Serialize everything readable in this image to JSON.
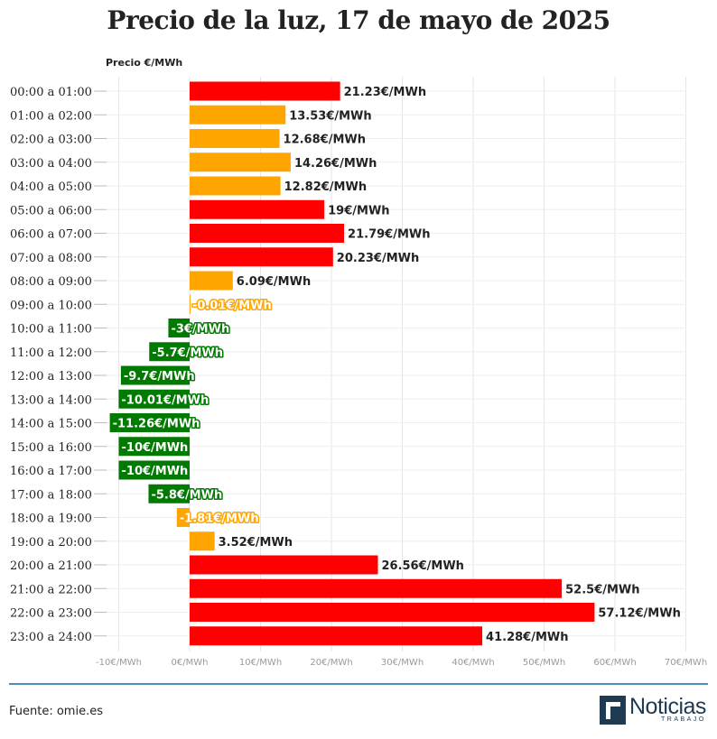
{
  "chart_data": {
    "type": "bar",
    "orientation": "horizontal",
    "title": "Precio de la luz, 17 de mayo de 2025",
    "axis_label": "Precio €/MWh",
    "categories": [
      "00:00 a 01:00",
      "01:00 a 02:00",
      "02:00 a 03:00",
      "03:00 a 04:00",
      "04:00 a 05:00",
      "05:00 a 06:00",
      "06:00 a 07:00",
      "07:00 a 08:00",
      "08:00 a 09:00",
      "09:00 a 10:00",
      "10:00 a 11:00",
      "11:00 a 12:00",
      "12:00 a 13:00",
      "13:00 a 14:00",
      "14:00 a 15:00",
      "15:00 a 16:00",
      "16:00 a 17:00",
      "17:00 a 18:00",
      "18:00 a 19:00",
      "19:00 a 20:00",
      "20:00 a 21:00",
      "21:00 a 22:00",
      "22:00 a 23:00",
      "23:00 a 24:00"
    ],
    "values": [
      21.23,
      13.53,
      12.68,
      14.26,
      12.82,
      19,
      21.79,
      20.23,
      6.09,
      -0.01,
      -3,
      -5.7,
      -9.7,
      -10.01,
      -11.26,
      -10,
      -10,
      -5.8,
      -1.81,
      3.52,
      26.56,
      52.5,
      57.12,
      41.28
    ],
    "value_labels": [
      "21.23€/MWh",
      "13.53€/MWh",
      "12.68€/MWh",
      "14.26€/MWh",
      "12.82€/MWh",
      "19€/MWh",
      "21.79€/MWh",
      "20.23€/MWh",
      "6.09€/MWh",
      "-0.01€/MWh",
      "-3€/MWh",
      "-5.7€/MWh",
      "-9.7€/MWh",
      "-10.01€/MWh",
      "-11.26€/MWh",
      "-10€/MWh",
      "-10€/MWh",
      "-5.8€/MWh",
      "-1.81€/MWh",
      "3.52€/MWh",
      "26.56€/MWh",
      "52.5€/MWh",
      "57.12€/MWh",
      "41.28€/MWh"
    ],
    "bar_colors": [
      "#ff0000",
      "#ffa500",
      "#ffa500",
      "#ffa500",
      "#ffa500",
      "#ff0000",
      "#ff0000",
      "#ff0000",
      "#ffa500",
      "#ffa500",
      "#007a00",
      "#007a00",
      "#007a00",
      "#007a00",
      "#007a00",
      "#007a00",
      "#007a00",
      "#007a00",
      "#ffa500",
      "#ffa500",
      "#ff0000",
      "#ff0000",
      "#ff0000",
      "#ff0000"
    ],
    "xlim": [
      -10,
      70
    ],
    "xticks": [
      -10,
      0,
      10,
      20,
      30,
      40,
      50,
      60,
      70
    ],
    "xtick_labels": [
      "-10€/MWh",
      "0€/MWh",
      "10€/MWh",
      "20€/MWh",
      "30€/MWh",
      "40€/MWh",
      "50€/MWh",
      "60€/MWh",
      "70€/MWh"
    ],
    "grid": true
  },
  "colors": {
    "red": "#ff0000",
    "orange": "#ffa500",
    "green": "#007a00",
    "dark_text": "#222222",
    "gray_text": "#999999",
    "divider": "#4d8fb0",
    "logo": "#203a52"
  },
  "footer": {
    "source": "Fuente: omie.es",
    "logo_word": "Noticias",
    "logo_sub": "TRABAJO"
  }
}
